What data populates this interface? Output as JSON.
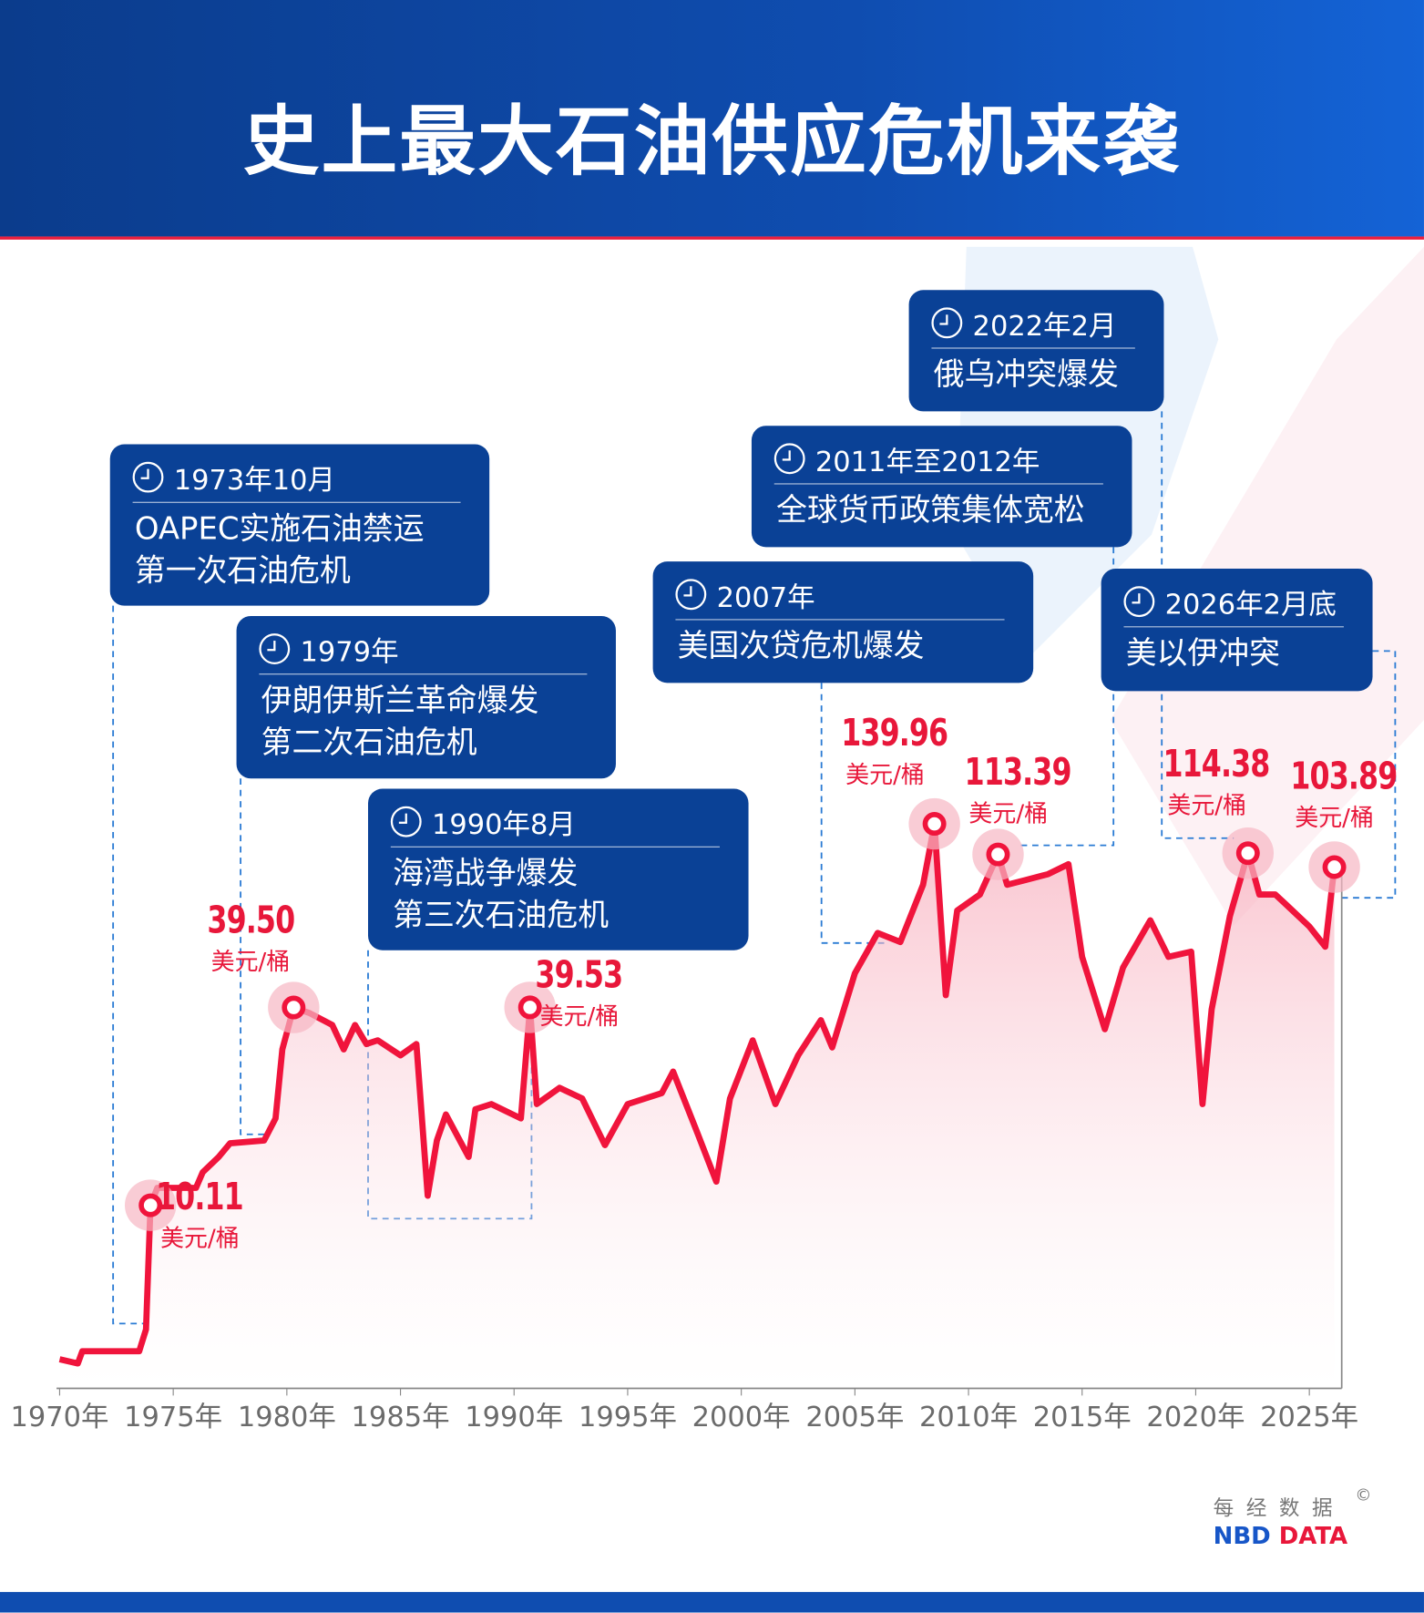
{
  "title": "史上最大石油供应危机来袭",
  "colors": {
    "header": "#0f4db0",
    "card": "#0a4196",
    "line": "#f0143c",
    "accent_red": "#e8173a",
    "dash": "#2a7bd4"
  },
  "events": [
    {
      "date": "1973年10月",
      "lines": [
        "OAPEC实施石油禁运",
        "第一次石油危机"
      ],
      "icon": "clock-icon"
    },
    {
      "date": "1979年",
      "lines": [
        "伊朗伊斯兰革命爆发",
        "第二次石油危机"
      ],
      "icon": "clock-icon"
    },
    {
      "date": "1990年8月",
      "lines": [
        "海湾战争爆发",
        "第三次石油危机"
      ],
      "icon": "clock-icon"
    },
    {
      "date": "2007年",
      "lines": [
        "美国次贷危机爆发"
      ],
      "icon": "clock-icon"
    },
    {
      "date": "2011年至2012年",
      "lines": [
        "全球货币政策集体宽松"
      ],
      "icon": "clock-icon"
    },
    {
      "date": "2022年2月",
      "lines": [
        "俄乌冲突爆发"
      ],
      "icon": "clock-icon"
    },
    {
      "date": "2026年2月底",
      "lines": [
        "美以伊冲突"
      ],
      "icon": "clock-icon"
    }
  ],
  "chart_data": {
    "type": "area",
    "y_scale": "log",
    "grid": false,
    "x_ticks": [
      "1970年",
      "1975年",
      "1980年",
      "1985年",
      "1990年",
      "1995年",
      "2000年",
      "2005年",
      "2010年",
      "2015年",
      "2020年",
      "2025年"
    ],
    "x_tick_values": [
      1970,
      1975,
      1980,
      1985,
      1990,
      1995,
      2000,
      2005,
      2010,
      2015,
      2020,
      2025
    ],
    "unit": "美元/桶",
    "points": [
      [
        1970.0,
        3.5
      ],
      [
        1970.8,
        3.4
      ],
      [
        1971.0,
        3.7
      ],
      [
        1973.5,
        3.7
      ],
      [
        1973.8,
        4.3
      ],
      [
        1974.0,
        10.11
      ],
      [
        1974.3,
        11.4
      ],
      [
        1976.0,
        11.4
      ],
      [
        1976.3,
        12.7
      ],
      [
        1977.0,
        14.1
      ],
      [
        1977.5,
        15.5
      ],
      [
        1979.0,
        15.8
      ],
      [
        1979.5,
        18.4
      ],
      [
        1979.8,
        29.6
      ],
      [
        1980.3,
        39.5
      ],
      [
        1981.0,
        38
      ],
      [
        1982.0,
        35
      ],
      [
        1982.5,
        29.6
      ],
      [
        1983.0,
        35
      ],
      [
        1983.5,
        30.7
      ],
      [
        1984.0,
        31.5
      ],
      [
        1985.0,
        28.4
      ],
      [
        1985.7,
        30.7
      ],
      [
        1986.2,
        10.8
      ],
      [
        1986.6,
        15.8
      ],
      [
        1987.0,
        18.9
      ],
      [
        1988.0,
        14.1
      ],
      [
        1988.3,
        19.6
      ],
      [
        1989.0,
        20.3
      ],
      [
        1990.3,
        18.4
      ],
      [
        1990.7,
        39.53
      ],
      [
        1991.0,
        20.3
      ],
      [
        1992.0,
        22.7
      ],
      [
        1993.0,
        21.1
      ],
      [
        1994.0,
        15.3
      ],
      [
        1995.0,
        20.3
      ],
      [
        1996.5,
        21.9
      ],
      [
        1997.0,
        25.4
      ],
      [
        1998.0,
        17.1
      ],
      [
        1998.9,
        11.9
      ],
      [
        1999.5,
        21.1
      ],
      [
        2000.5,
        31.5
      ],
      [
        2001.5,
        20.3
      ],
      [
        2002.5,
        28.4
      ],
      [
        2003.5,
        36.2
      ],
      [
        2004.0,
        30
      ],
      [
        2005.0,
        50
      ],
      [
        2006.0,
        66
      ],
      [
        2007.0,
        62
      ],
      [
        2008.0,
        92
      ],
      [
        2008.5,
        139.96
      ],
      [
        2009.0,
        43
      ],
      [
        2009.5,
        77
      ],
      [
        2010.5,
        86
      ],
      [
        2011.3,
        113.39
      ],
      [
        2011.7,
        92
      ],
      [
        2012.5,
        95
      ],
      [
        2013.5,
        99
      ],
      [
        2014.4,
        106
      ],
      [
        2015.0,
        56
      ],
      [
        2016.0,
        34
      ],
      [
        2016.8,
        52
      ],
      [
        2018.0,
        72
      ],
      [
        2018.8,
        56
      ],
      [
        2019.8,
        58
      ],
      [
        2020.3,
        20.3
      ],
      [
        2020.7,
        39
      ],
      [
        2021.5,
        74
      ],
      [
        2022.3,
        114.38
      ],
      [
        2022.8,
        86
      ],
      [
        2023.5,
        86
      ],
      [
        2024.0,
        80
      ],
      [
        2025.0,
        69
      ],
      [
        2025.7,
        60
      ],
      [
        2026.1,
        103.89
      ]
    ],
    "annotations": [
      {
        "x": 1974.0,
        "value": 10.11,
        "label": "10.11",
        "unit": "美元/桶"
      },
      {
        "x": 1980.3,
        "value": 39.5,
        "label": "39.50",
        "unit": "美元/桶"
      },
      {
        "x": 1990.7,
        "value": 39.53,
        "label": "39.53",
        "unit": "美元/桶"
      },
      {
        "x": 2008.5,
        "value": 139.96,
        "label": "139.96",
        "unit": "美元/桶"
      },
      {
        "x": 2011.3,
        "value": 113.39,
        "label": "113.39",
        "unit": "美元/桶"
      },
      {
        "x": 2022.3,
        "value": 114.38,
        "label": "114.38",
        "unit": "美元/桶"
      },
      {
        "x": 2026.1,
        "value": 103.89,
        "label": "103.89",
        "unit": "美元/桶"
      }
    ]
  },
  "brand": {
    "cn": "每经数据",
    "copyright": "©",
    "en_1": "NBD",
    "en_2": "DATA"
  }
}
